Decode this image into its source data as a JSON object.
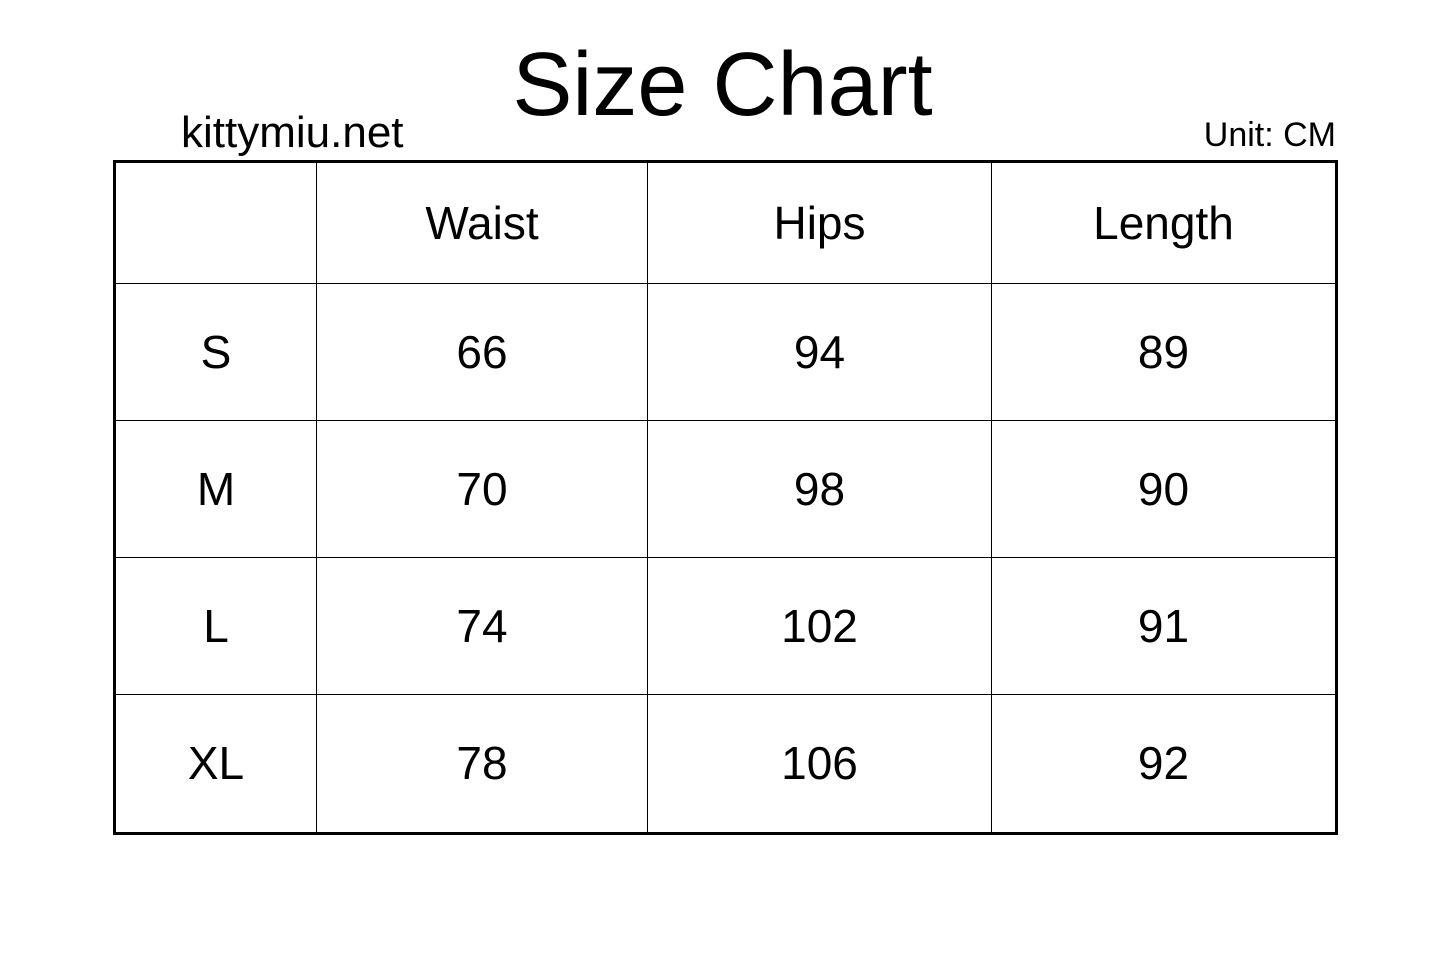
{
  "title": "Size Chart",
  "site": "kittymiu.net",
  "unit": "Unit: CM",
  "headers": [
    "",
    "Waist",
    "Hips",
    "Length"
  ],
  "rows": [
    [
      "S",
      "66",
      "94",
      "89"
    ],
    [
      "M",
      "70",
      "98",
      "90"
    ],
    [
      "L",
      "74",
      "102",
      "91"
    ],
    [
      "XL",
      "78",
      "106",
      "92"
    ]
  ]
}
